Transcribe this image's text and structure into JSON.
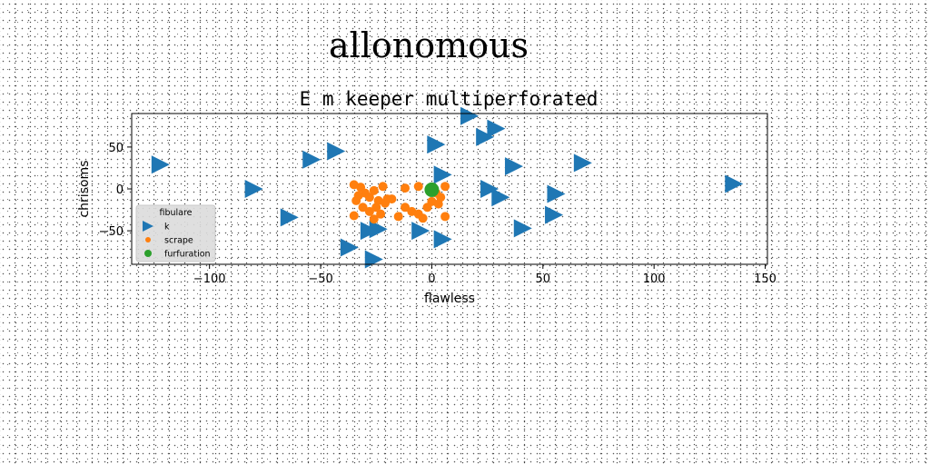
{
  "page_title": "allonomous",
  "chart_data": {
    "type": "scatter",
    "title": "E m keeper multiperforated",
    "xlabel": "flawless",
    "ylabel": "chrisoms",
    "xlim": [
      -135,
      151
    ],
    "ylim": [
      -90,
      90
    ],
    "xticks": [
      -100,
      -50,
      0,
      50,
      100,
      150
    ],
    "yticks": [
      -50,
      0,
      50
    ],
    "grid": false,
    "legend": {
      "title": "fibulare",
      "placement": "lower-left"
    },
    "colors": {
      "k": "#1f77b4",
      "scrape": "#ff7f0e",
      "furfuration": "#2ca02c"
    },
    "series": [
      {
        "name": "k",
        "marker": "triangle-right",
        "points": [
          [
            -122,
            29
          ],
          [
            -80,
            0
          ],
          [
            -64,
            -34
          ],
          [
            -54,
            35
          ],
          [
            -43,
            45
          ],
          [
            -37,
            -70
          ],
          [
            -26,
            -84
          ],
          [
            -24,
            -48
          ],
          [
            -28,
            -50
          ],
          [
            -5,
            -50
          ],
          [
            2,
            53
          ],
          [
            5,
            -60
          ],
          [
            5,
            17
          ],
          [
            17,
            87
          ],
          [
            24,
            62
          ],
          [
            29,
            72
          ],
          [
            26,
            0
          ],
          [
            31,
            -10
          ],
          [
            37,
            27
          ],
          [
            41,
            -47
          ],
          [
            55,
            -31
          ],
          [
            56,
            -6
          ],
          [
            68,
            31
          ],
          [
            136,
            6
          ]
        ]
      },
      {
        "name": "scrape",
        "marker": "circle",
        "points": [
          [
            -35,
            5
          ],
          [
            -32,
            2
          ],
          [
            -30,
            -5
          ],
          [
            -28,
            -10
          ],
          [
            -26,
            -2
          ],
          [
            -24,
            -14
          ],
          [
            -22,
            3
          ],
          [
            -20,
            -12
          ],
          [
            -34,
            -14
          ],
          [
            -31,
            -22
          ],
          [
            -28,
            -27
          ],
          [
            -25,
            -22
          ],
          [
            -23,
            -30
          ],
          [
            -26,
            -36
          ],
          [
            -35,
            -32
          ],
          [
            -18,
            -12
          ],
          [
            -15,
            -33
          ],
          [
            -12,
            -22
          ],
          [
            -9,
            -27
          ],
          [
            -6,
            -30
          ],
          [
            -4,
            -35
          ],
          [
            -2,
            -22
          ],
          [
            0,
            -15
          ],
          [
            2,
            -5
          ],
          [
            4,
            -10
          ],
          [
            6,
            3
          ],
          [
            6,
            -33
          ],
          [
            -12,
            1
          ],
          [
            -6,
            3
          ],
          [
            0,
            -3
          ],
          [
            3,
            -18
          ],
          [
            -33,
            -8
          ],
          [
            -21,
            -17
          ]
        ]
      },
      {
        "name": "furfuration",
        "marker": "big-circle",
        "points": [
          [
            0,
            -1
          ]
        ]
      }
    ]
  }
}
